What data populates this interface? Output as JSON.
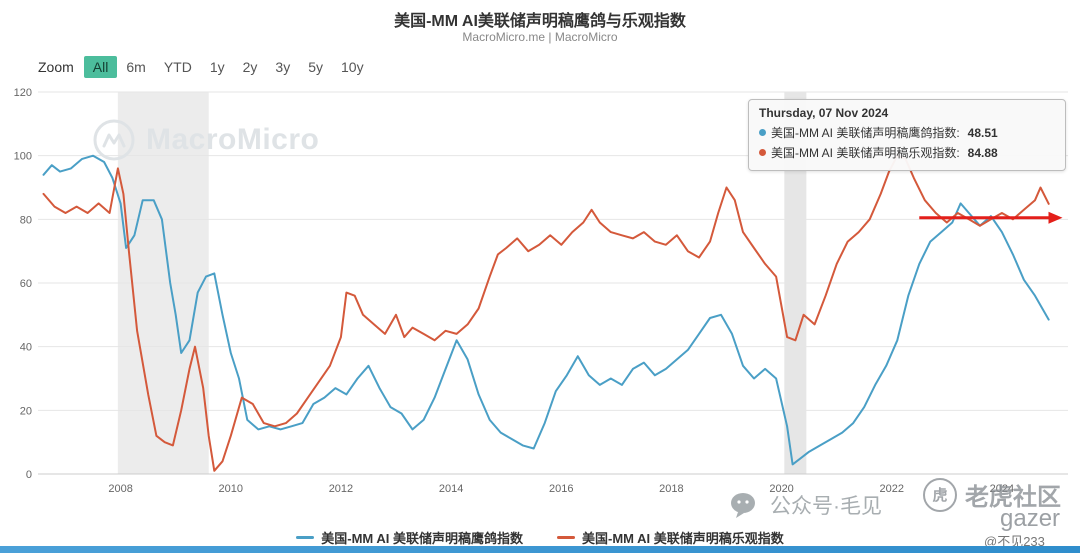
{
  "header": {
    "title": "美国-MM AI美联储声明稿鹰鸽与乐观指数",
    "subtitle": "MacroMicro.me | MacroMicro"
  },
  "toolbar": {
    "zoom_label": "Zoom",
    "buttons": [
      "All",
      "6m",
      "YTD",
      "1y",
      "2y",
      "3y",
      "5y",
      "10y"
    ],
    "selected": "All"
  },
  "watermark": {
    "brand": "MacroMicro"
  },
  "tooltip": {
    "date": "Thursday, 07 Nov 2024",
    "rows": [
      {
        "label": "美国-MM AI 美联储声明稿鹰鸽指数:",
        "value": "48.51",
        "color": "#4a9fc6"
      },
      {
        "label": "美国-MM AI 美联储声明稿乐观指数:",
        "value": "84.88",
        "color": "#d4593b"
      }
    ]
  },
  "legend": [
    {
      "label": "美国-MM AI 美联储声明稿鹰鸽指数",
      "color": "#4a9fc6"
    },
    {
      "label": "美国-MM AI 美联储声明稿乐观指数",
      "color": "#d4593b"
    }
  ],
  "overlays": {
    "wechat_watermark": "公众号·毛见",
    "tiger_badge": "老虎社区",
    "tiger_glyph": "虎",
    "gazer_text": "gazer",
    "handle": "@不见233"
  },
  "chart_data": {
    "type": "line",
    "title": "美国-MM AI美联储声明稿鹰鸽与乐观指数",
    "xlabel": "",
    "ylabel": "",
    "ylim": [
      0,
      120
    ],
    "yticks": [
      0,
      20,
      40,
      60,
      80,
      100,
      120
    ],
    "xlim": [
      2006.5,
      2025.2
    ],
    "xticks": [
      2008,
      2010,
      2012,
      2014,
      2016,
      2018,
      2020,
      2022,
      2024
    ],
    "grid": true,
    "legend_position": "bottom",
    "bands": [
      {
        "from": 2007.95,
        "to": 2009.6,
        "color": "#ececec"
      },
      {
        "from": 2020.05,
        "to": 2020.45,
        "color": "#e6e6e6"
      }
    ],
    "annotations": [
      {
        "type": "arrow",
        "y": 80.5,
        "x_from": 2022.5,
        "x_to": 2025.1,
        "color": "#e31f1a"
      }
    ],
    "series": [
      {
        "name": "美国-MM AI 美联储声明稿鹰鸽指数",
        "color": "#4a9fc6",
        "last_value": 48.51,
        "points": [
          [
            2006.6,
            94
          ],
          [
            2006.75,
            97
          ],
          [
            2006.9,
            95
          ],
          [
            2007.1,
            96
          ],
          [
            2007.3,
            99
          ],
          [
            2007.5,
            100
          ],
          [
            2007.7,
            98
          ],
          [
            2007.85,
            93
          ],
          [
            2008.0,
            85
          ],
          [
            2008.1,
            71
          ],
          [
            2008.25,
            75
          ],
          [
            2008.4,
            86
          ],
          [
            2008.6,
            86
          ],
          [
            2008.75,
            80
          ],
          [
            2008.9,
            60
          ],
          [
            2009.0,
            50
          ],
          [
            2009.1,
            38
          ],
          [
            2009.25,
            42
          ],
          [
            2009.4,
            57
          ],
          [
            2009.55,
            62
          ],
          [
            2009.7,
            63
          ],
          [
            2009.85,
            50
          ],
          [
            2010.0,
            38
          ],
          [
            2010.15,
            30
          ],
          [
            2010.3,
            17
          ],
          [
            2010.5,
            14
          ],
          [
            2010.7,
            15
          ],
          [
            2010.9,
            14
          ],
          [
            2011.1,
            15
          ],
          [
            2011.3,
            16
          ],
          [
            2011.5,
            22
          ],
          [
            2011.7,
            24
          ],
          [
            2011.9,
            27
          ],
          [
            2012.1,
            25
          ],
          [
            2012.3,
            30
          ],
          [
            2012.5,
            34
          ],
          [
            2012.7,
            27
          ],
          [
            2012.9,
            21
          ],
          [
            2013.1,
            19
          ],
          [
            2013.3,
            14
          ],
          [
            2013.5,
            17
          ],
          [
            2013.7,
            24
          ],
          [
            2013.9,
            33
          ],
          [
            2014.1,
            42
          ],
          [
            2014.3,
            36
          ],
          [
            2014.5,
            25
          ],
          [
            2014.7,
            17
          ],
          [
            2014.9,
            13
          ],
          [
            2015.1,
            11
          ],
          [
            2015.3,
            9
          ],
          [
            2015.5,
            8
          ],
          [
            2015.7,
            16
          ],
          [
            2015.9,
            26
          ],
          [
            2016.1,
            31
          ],
          [
            2016.3,
            37
          ],
          [
            2016.5,
            31
          ],
          [
            2016.7,
            28
          ],
          [
            2016.9,
            30
          ],
          [
            2017.1,
            28
          ],
          [
            2017.3,
            33
          ],
          [
            2017.5,
            35
          ],
          [
            2017.7,
            31
          ],
          [
            2017.9,
            33
          ],
          [
            2018.1,
            36
          ],
          [
            2018.3,
            39
          ],
          [
            2018.5,
            44
          ],
          [
            2018.7,
            49
          ],
          [
            2018.9,
            50
          ],
          [
            2019.1,
            44
          ],
          [
            2019.3,
            34
          ],
          [
            2019.5,
            30
          ],
          [
            2019.7,
            33
          ],
          [
            2019.9,
            30
          ],
          [
            2020.1,
            15
          ],
          [
            2020.2,
            3
          ],
          [
            2020.35,
            5
          ],
          [
            2020.5,
            7
          ],
          [
            2020.7,
            9
          ],
          [
            2020.9,
            11
          ],
          [
            2021.1,
            13
          ],
          [
            2021.3,
            16
          ],
          [
            2021.5,
            21
          ],
          [
            2021.7,
            28
          ],
          [
            2021.9,
            34
          ],
          [
            2022.1,
            42
          ],
          [
            2022.3,
            56
          ],
          [
            2022.5,
            66
          ],
          [
            2022.7,
            73
          ],
          [
            2022.9,
            76
          ],
          [
            2023.1,
            79
          ],
          [
            2023.25,
            85
          ],
          [
            2023.4,
            82
          ],
          [
            2023.6,
            78
          ],
          [
            2023.8,
            81
          ],
          [
            2024.0,
            76
          ],
          [
            2024.2,
            69
          ],
          [
            2024.4,
            61
          ],
          [
            2024.6,
            56
          ],
          [
            2024.85,
            48.51
          ]
        ]
      },
      {
        "name": "美国-MM AI 美联储声明稿乐观指数",
        "color": "#d4593b",
        "last_value": 84.88,
        "points": [
          [
            2006.6,
            88
          ],
          [
            2006.8,
            84
          ],
          [
            2007.0,
            82
          ],
          [
            2007.2,
            84
          ],
          [
            2007.4,
            82
          ],
          [
            2007.6,
            85
          ],
          [
            2007.8,
            82
          ],
          [
            2007.95,
            96
          ],
          [
            2008.05,
            88
          ],
          [
            2008.15,
            70
          ],
          [
            2008.3,
            45
          ],
          [
            2008.5,
            25
          ],
          [
            2008.65,
            12
          ],
          [
            2008.8,
            10
          ],
          [
            2008.95,
            9
          ],
          [
            2009.1,
            20
          ],
          [
            2009.25,
            33
          ],
          [
            2009.35,
            40
          ],
          [
            2009.5,
            27
          ],
          [
            2009.6,
            12
          ],
          [
            2009.7,
            1
          ],
          [
            2009.85,
            4
          ],
          [
            2010.0,
            12
          ],
          [
            2010.2,
            24
          ],
          [
            2010.4,
            22
          ],
          [
            2010.6,
            16
          ],
          [
            2010.8,
            15
          ],
          [
            2011.0,
            16
          ],
          [
            2011.2,
            19
          ],
          [
            2011.4,
            24
          ],
          [
            2011.6,
            29
          ],
          [
            2011.8,
            34
          ],
          [
            2012.0,
            43
          ],
          [
            2012.1,
            57
          ],
          [
            2012.25,
            56
          ],
          [
            2012.4,
            50
          ],
          [
            2012.6,
            47
          ],
          [
            2012.8,
            44
          ],
          [
            2013.0,
            50
          ],
          [
            2013.15,
            43
          ],
          [
            2013.3,
            46
          ],
          [
            2013.5,
            44
          ],
          [
            2013.7,
            42
          ],
          [
            2013.9,
            45
          ],
          [
            2014.1,
            44
          ],
          [
            2014.3,
            47
          ],
          [
            2014.5,
            52
          ],
          [
            2014.7,
            62
          ],
          [
            2014.85,
            69
          ],
          [
            2015.0,
            71
          ],
          [
            2015.2,
            74
          ],
          [
            2015.4,
            70
          ],
          [
            2015.6,
            72
          ],
          [
            2015.8,
            75
          ],
          [
            2016.0,
            72
          ],
          [
            2016.2,
            76
          ],
          [
            2016.4,
            79
          ],
          [
            2016.55,
            83
          ],
          [
            2016.7,
            79
          ],
          [
            2016.9,
            76
          ],
          [
            2017.1,
            75
          ],
          [
            2017.3,
            74
          ],
          [
            2017.5,
            76
          ],
          [
            2017.7,
            73
          ],
          [
            2017.9,
            72
          ],
          [
            2018.1,
            75
          ],
          [
            2018.3,
            70
          ],
          [
            2018.5,
            68
          ],
          [
            2018.7,
            73
          ],
          [
            2018.85,
            82
          ],
          [
            2019.0,
            90
          ],
          [
            2019.15,
            86
          ],
          [
            2019.3,
            76
          ],
          [
            2019.5,
            71
          ],
          [
            2019.7,
            66
          ],
          [
            2019.9,
            62
          ],
          [
            2020.1,
            43
          ],
          [
            2020.25,
            42
          ],
          [
            2020.4,
            50
          ],
          [
            2020.6,
            47
          ],
          [
            2020.8,
            56
          ],
          [
            2021.0,
            66
          ],
          [
            2021.2,
            73
          ],
          [
            2021.4,
            76
          ],
          [
            2021.6,
            80
          ],
          [
            2021.8,
            88
          ],
          [
            2021.95,
            95
          ],
          [
            2022.1,
            100
          ],
          [
            2022.25,
            99
          ],
          [
            2022.4,
            93
          ],
          [
            2022.6,
            86
          ],
          [
            2022.8,
            82
          ],
          [
            2023.0,
            79
          ],
          [
            2023.2,
            82
          ],
          [
            2023.4,
            80
          ],
          [
            2023.6,
            78
          ],
          [
            2023.8,
            80
          ],
          [
            2024.0,
            82
          ],
          [
            2024.2,
            80
          ],
          [
            2024.4,
            83
          ],
          [
            2024.6,
            86
          ],
          [
            2024.7,
            90
          ],
          [
            2024.85,
            84.88
          ]
        ]
      }
    ]
  }
}
